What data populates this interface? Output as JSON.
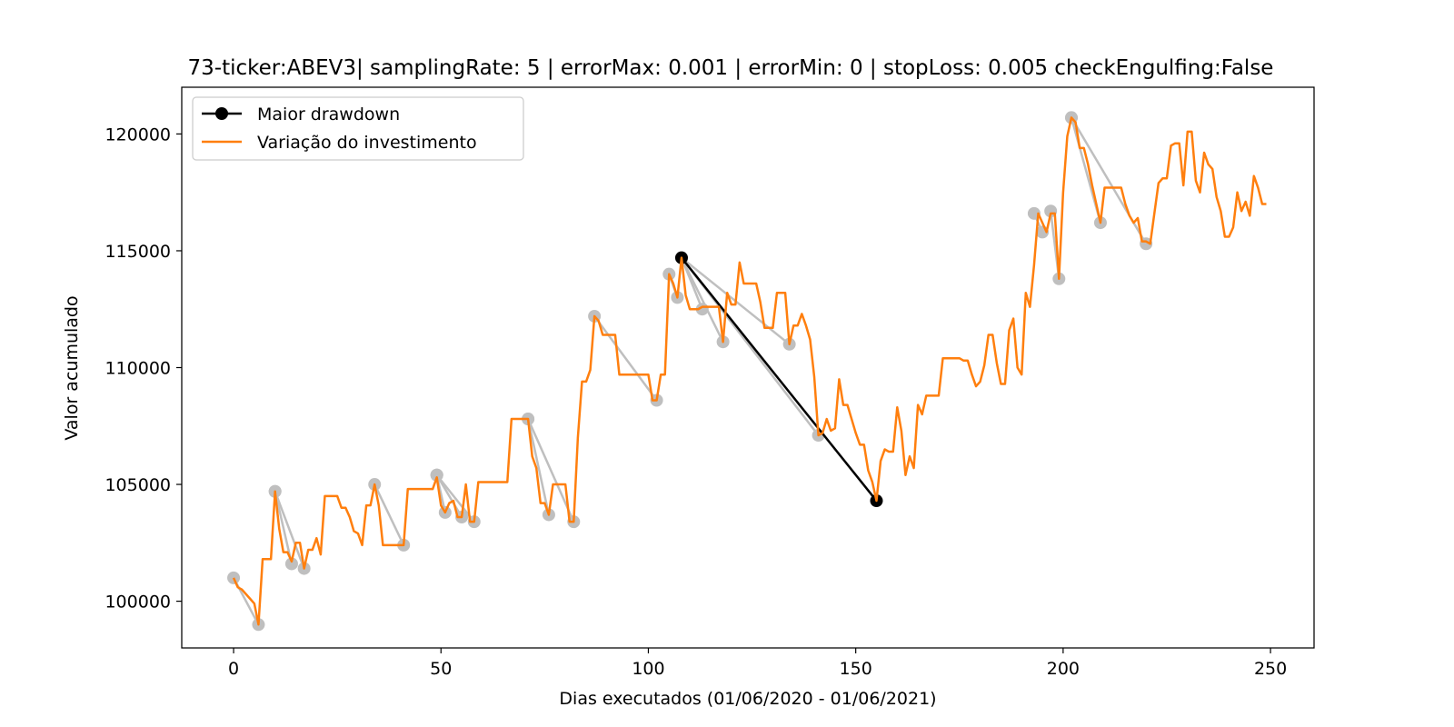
{
  "chart_data": {
    "type": "line",
    "title": "73-ticker:ABEV3| samplingRate: 5 | errorMax: 0.001 | errorMin: 0 | stopLoss: 0.005 checkEngulfing:False",
    "xlabel": "Dias executados (01/06/2020 - 01/06/2021)",
    "ylabel": "Valor acumulado",
    "xlim": [
      -12.5,
      260.5
    ],
    "ylim": [
      98000,
      122000
    ],
    "xticks": [
      0,
      50,
      100,
      150,
      200,
      250
    ],
    "yticks": [
      100000,
      105000,
      110000,
      115000,
      120000
    ],
    "grid": false,
    "legend_position": "top-left",
    "series": [
      {
        "name": "Variação do investimento",
        "color": "#ff7f0e",
        "points": [
          [
            0,
            101000
          ],
          [
            1,
            100600
          ],
          [
            2,
            100500
          ],
          [
            3,
            100300
          ],
          [
            4,
            100100
          ],
          [
            5,
            99900
          ],
          [
            6,
            99000
          ],
          [
            7,
            101800
          ],
          [
            8,
            101800
          ],
          [
            9,
            101800
          ],
          [
            10,
            104700
          ],
          [
            11,
            103100
          ],
          [
            12,
            102100
          ],
          [
            13,
            102100
          ],
          [
            14,
            101700
          ],
          [
            15,
            102500
          ],
          [
            16,
            102500
          ],
          [
            17,
            101400
          ],
          [
            18,
            102200
          ],
          [
            19,
            102200
          ],
          [
            20,
            102700
          ],
          [
            21,
            102000
          ],
          [
            22,
            104500
          ],
          [
            23,
            104500
          ],
          [
            24,
            104500
          ],
          [
            25,
            104500
          ],
          [
            26,
            104000
          ],
          [
            27,
            104000
          ],
          [
            28,
            103600
          ],
          [
            29,
            103000
          ],
          [
            30,
            102900
          ],
          [
            31,
            102400
          ],
          [
            32,
            104100
          ],
          [
            33,
            104100
          ],
          [
            34,
            105000
          ],
          [
            35,
            104100
          ],
          [
            36,
            102400
          ],
          [
            37,
            102400
          ],
          [
            38,
            102400
          ],
          [
            39,
            102400
          ],
          [
            40,
            102400
          ],
          [
            41,
            102400
          ],
          [
            42,
            104800
          ],
          [
            43,
            104800
          ],
          [
            44,
            104800
          ],
          [
            45,
            104800
          ],
          [
            46,
            104800
          ],
          [
            47,
            104800
          ],
          [
            48,
            104800
          ],
          [
            49,
            105300
          ],
          [
            50,
            104100
          ],
          [
            51,
            103800
          ],
          [
            52,
            104200
          ],
          [
            53,
            104300
          ],
          [
            54,
            103600
          ],
          [
            55,
            103600
          ],
          [
            56,
            105000
          ],
          [
            57,
            103400
          ],
          [
            58,
            103400
          ],
          [
            59,
            105100
          ],
          [
            60,
            105100
          ],
          [
            61,
            105100
          ],
          [
            62,
            105100
          ],
          [
            63,
            105100
          ],
          [
            64,
            105100
          ],
          [
            65,
            105100
          ],
          [
            66,
            105100
          ],
          [
            67,
            107800
          ],
          [
            68,
            107800
          ],
          [
            69,
            107800
          ],
          [
            70,
            107800
          ],
          [
            71,
            107800
          ],
          [
            72,
            106200
          ],
          [
            73,
            105700
          ],
          [
            74,
            104200
          ],
          [
            75,
            104200
          ],
          [
            76,
            103700
          ],
          [
            77,
            105000
          ],
          [
            78,
            105000
          ],
          [
            79,
            105000
          ],
          [
            80,
            105000
          ],
          [
            81,
            103400
          ],
          [
            82,
            103400
          ],
          [
            83,
            107000
          ],
          [
            84,
            109400
          ],
          [
            85,
            109400
          ],
          [
            86,
            109900
          ],
          [
            87,
            112200
          ],
          [
            88,
            112000
          ],
          [
            89,
            111400
          ],
          [
            90,
            111400
          ],
          [
            91,
            111400
          ],
          [
            92,
            111400
          ],
          [
            93,
            109700
          ],
          [
            94,
            109700
          ],
          [
            95,
            109700
          ],
          [
            96,
            109700
          ],
          [
            97,
            109700
          ],
          [
            98,
            109700
          ],
          [
            99,
            109700
          ],
          [
            100,
            109700
          ],
          [
            101,
            108600
          ],
          [
            102,
            108600
          ],
          [
            103,
            109700
          ],
          [
            104,
            109700
          ],
          [
            105,
            114000
          ],
          [
            106,
            113600
          ],
          [
            107,
            113000
          ],
          [
            108,
            114700
          ],
          [
            109,
            113100
          ],
          [
            110,
            112500
          ],
          [
            111,
            112500
          ],
          [
            112,
            112500
          ],
          [
            113,
            112600
          ],
          [
            114,
            112600
          ],
          [
            115,
            112600
          ],
          [
            116,
            112600
          ],
          [
            117,
            112600
          ],
          [
            118,
            111100
          ],
          [
            119,
            113200
          ],
          [
            120,
            112700
          ],
          [
            121,
            112700
          ],
          [
            122,
            114500
          ],
          [
            123,
            113600
          ],
          [
            124,
            113600
          ],
          [
            125,
            113600
          ],
          [
            126,
            113600
          ],
          [
            127,
            112800
          ],
          [
            128,
            111700
          ],
          [
            129,
            111700
          ],
          [
            130,
            111700
          ],
          [
            131,
            113200
          ],
          [
            132,
            113200
          ],
          [
            133,
            113200
          ],
          [
            134,
            111000
          ],
          [
            135,
            111800
          ],
          [
            136,
            111800
          ],
          [
            137,
            112300
          ],
          [
            138,
            111800
          ],
          [
            139,
            111200
          ],
          [
            140,
            109600
          ],
          [
            141,
            107100
          ],
          [
            142,
            107200
          ],
          [
            143,
            107800
          ],
          [
            144,
            107300
          ],
          [
            145,
            107400
          ],
          [
            146,
            109500
          ],
          [
            147,
            108400
          ],
          [
            148,
            108400
          ],
          [
            149,
            107800
          ],
          [
            150,
            107200
          ],
          [
            151,
            106700
          ],
          [
            152,
            106700
          ],
          [
            153,
            105600
          ],
          [
            154,
            105100
          ],
          [
            155,
            104300
          ],
          [
            156,
            106000
          ],
          [
            157,
            106500
          ],
          [
            158,
            106400
          ],
          [
            159,
            106400
          ],
          [
            160,
            108300
          ],
          [
            161,
            107300
          ],
          [
            162,
            105400
          ],
          [
            163,
            106200
          ],
          [
            164,
            105700
          ],
          [
            165,
            108400
          ],
          [
            166,
            108000
          ],
          [
            167,
            108800
          ],
          [
            168,
            108800
          ],
          [
            169,
            108800
          ],
          [
            170,
            108800
          ],
          [
            171,
            110400
          ],
          [
            172,
            110400
          ],
          [
            173,
            110400
          ],
          [
            174,
            110400
          ],
          [
            175,
            110400
          ],
          [
            176,
            110300
          ],
          [
            177,
            110300
          ],
          [
            178,
            109700
          ],
          [
            179,
            109200
          ],
          [
            180,
            109400
          ],
          [
            181,
            110100
          ],
          [
            182,
            111400
          ],
          [
            183,
            111400
          ],
          [
            184,
            110200
          ],
          [
            185,
            109300
          ],
          [
            186,
            109300
          ],
          [
            187,
            111600
          ],
          [
            188,
            112100
          ],
          [
            189,
            110000
          ],
          [
            190,
            109700
          ],
          [
            191,
            113200
          ],
          [
            192,
            112600
          ],
          [
            193,
            114400
          ],
          [
            194,
            116600
          ],
          [
            195,
            116200
          ],
          [
            196,
            115800
          ],
          [
            197,
            116600
          ],
          [
            198,
            116600
          ],
          [
            199,
            113800
          ],
          [
            200,
            117500
          ],
          [
            201,
            119900
          ],
          [
            202,
            120700
          ],
          [
            203,
            120500
          ],
          [
            204,
            119400
          ],
          [
            205,
            119400
          ],
          [
            206,
            118700
          ],
          [
            207,
            117800
          ],
          [
            208,
            117000
          ],
          [
            209,
            116200
          ],
          [
            210,
            117700
          ],
          [
            211,
            117700
          ],
          [
            212,
            117700
          ],
          [
            213,
            117700
          ],
          [
            214,
            117700
          ],
          [
            215,
            117000
          ],
          [
            216,
            116500
          ],
          [
            217,
            116200
          ],
          [
            218,
            116400
          ],
          [
            219,
            115400
          ],
          [
            220,
            115400
          ],
          [
            221,
            115300
          ],
          [
            222,
            116600
          ],
          [
            223,
            117900
          ],
          [
            224,
            118100
          ],
          [
            225,
            118100
          ],
          [
            226,
            119500
          ],
          [
            227,
            119600
          ],
          [
            228,
            119600
          ],
          [
            229,
            117800
          ],
          [
            230,
            120100
          ],
          [
            231,
            120100
          ],
          [
            232,
            118000
          ],
          [
            233,
            117500
          ],
          [
            234,
            119200
          ],
          [
            235,
            118700
          ],
          [
            236,
            118500
          ],
          [
            237,
            117300
          ],
          [
            238,
            116700
          ],
          [
            239,
            115600
          ],
          [
            240,
            115600
          ],
          [
            241,
            116000
          ],
          [
            242,
            117500
          ],
          [
            243,
            116700
          ],
          [
            244,
            117100
          ],
          [
            245,
            116500
          ],
          [
            246,
            118200
          ],
          [
            247,
            117700
          ],
          [
            248,
            117000
          ],
          [
            249,
            117000
          ]
        ]
      },
      {
        "name": "Maior drawdown",
        "color": "#000000",
        "marker": "circle",
        "points": [
          [
            108,
            114700
          ],
          [
            155,
            104300
          ]
        ]
      }
    ],
    "drawdown_pairs": {
      "color": "#bfbfbf",
      "marker": "circle",
      "pairs": [
        [
          [
            0,
            101000
          ],
          [
            6,
            99000
          ]
        ],
        [
          [
            10,
            104700
          ],
          [
            14,
            101600
          ]
        ],
        [
          [
            10,
            104700
          ],
          [
            17,
            101400
          ]
        ],
        [
          [
            34,
            105000
          ],
          [
            41,
            102400
          ]
        ],
        [
          [
            49,
            105400
          ],
          [
            51,
            103800
          ]
        ],
        [
          [
            49,
            105400
          ],
          [
            55,
            103600
          ]
        ],
        [
          [
            49,
            105400
          ],
          [
            58,
            103400
          ]
        ],
        [
          [
            71,
            107800
          ],
          [
            76,
            103700
          ]
        ],
        [
          [
            71,
            107800
          ],
          [
            82,
            103400
          ]
        ],
        [
          [
            87,
            112200
          ],
          [
            102,
            108600
          ]
        ],
        [
          [
            105,
            114000
          ],
          [
            107,
            113000
          ]
        ],
        [
          [
            108,
            114700
          ],
          [
            113,
            112500
          ]
        ],
        [
          [
            108,
            114700
          ],
          [
            118,
            111100
          ]
        ],
        [
          [
            108,
            114700
          ],
          [
            134,
            111000
          ]
        ],
        [
          [
            108,
            114700
          ],
          [
            141,
            107100
          ]
        ],
        [
          [
            193,
            116600
          ],
          [
            195,
            115800
          ]
        ],
        [
          [
            197,
            116700
          ],
          [
            199,
            113800
          ]
        ],
        [
          [
            202,
            120700
          ],
          [
            209,
            116200
          ]
        ],
        [
          [
            202,
            120700
          ],
          [
            220,
            115300
          ]
        ]
      ]
    }
  }
}
